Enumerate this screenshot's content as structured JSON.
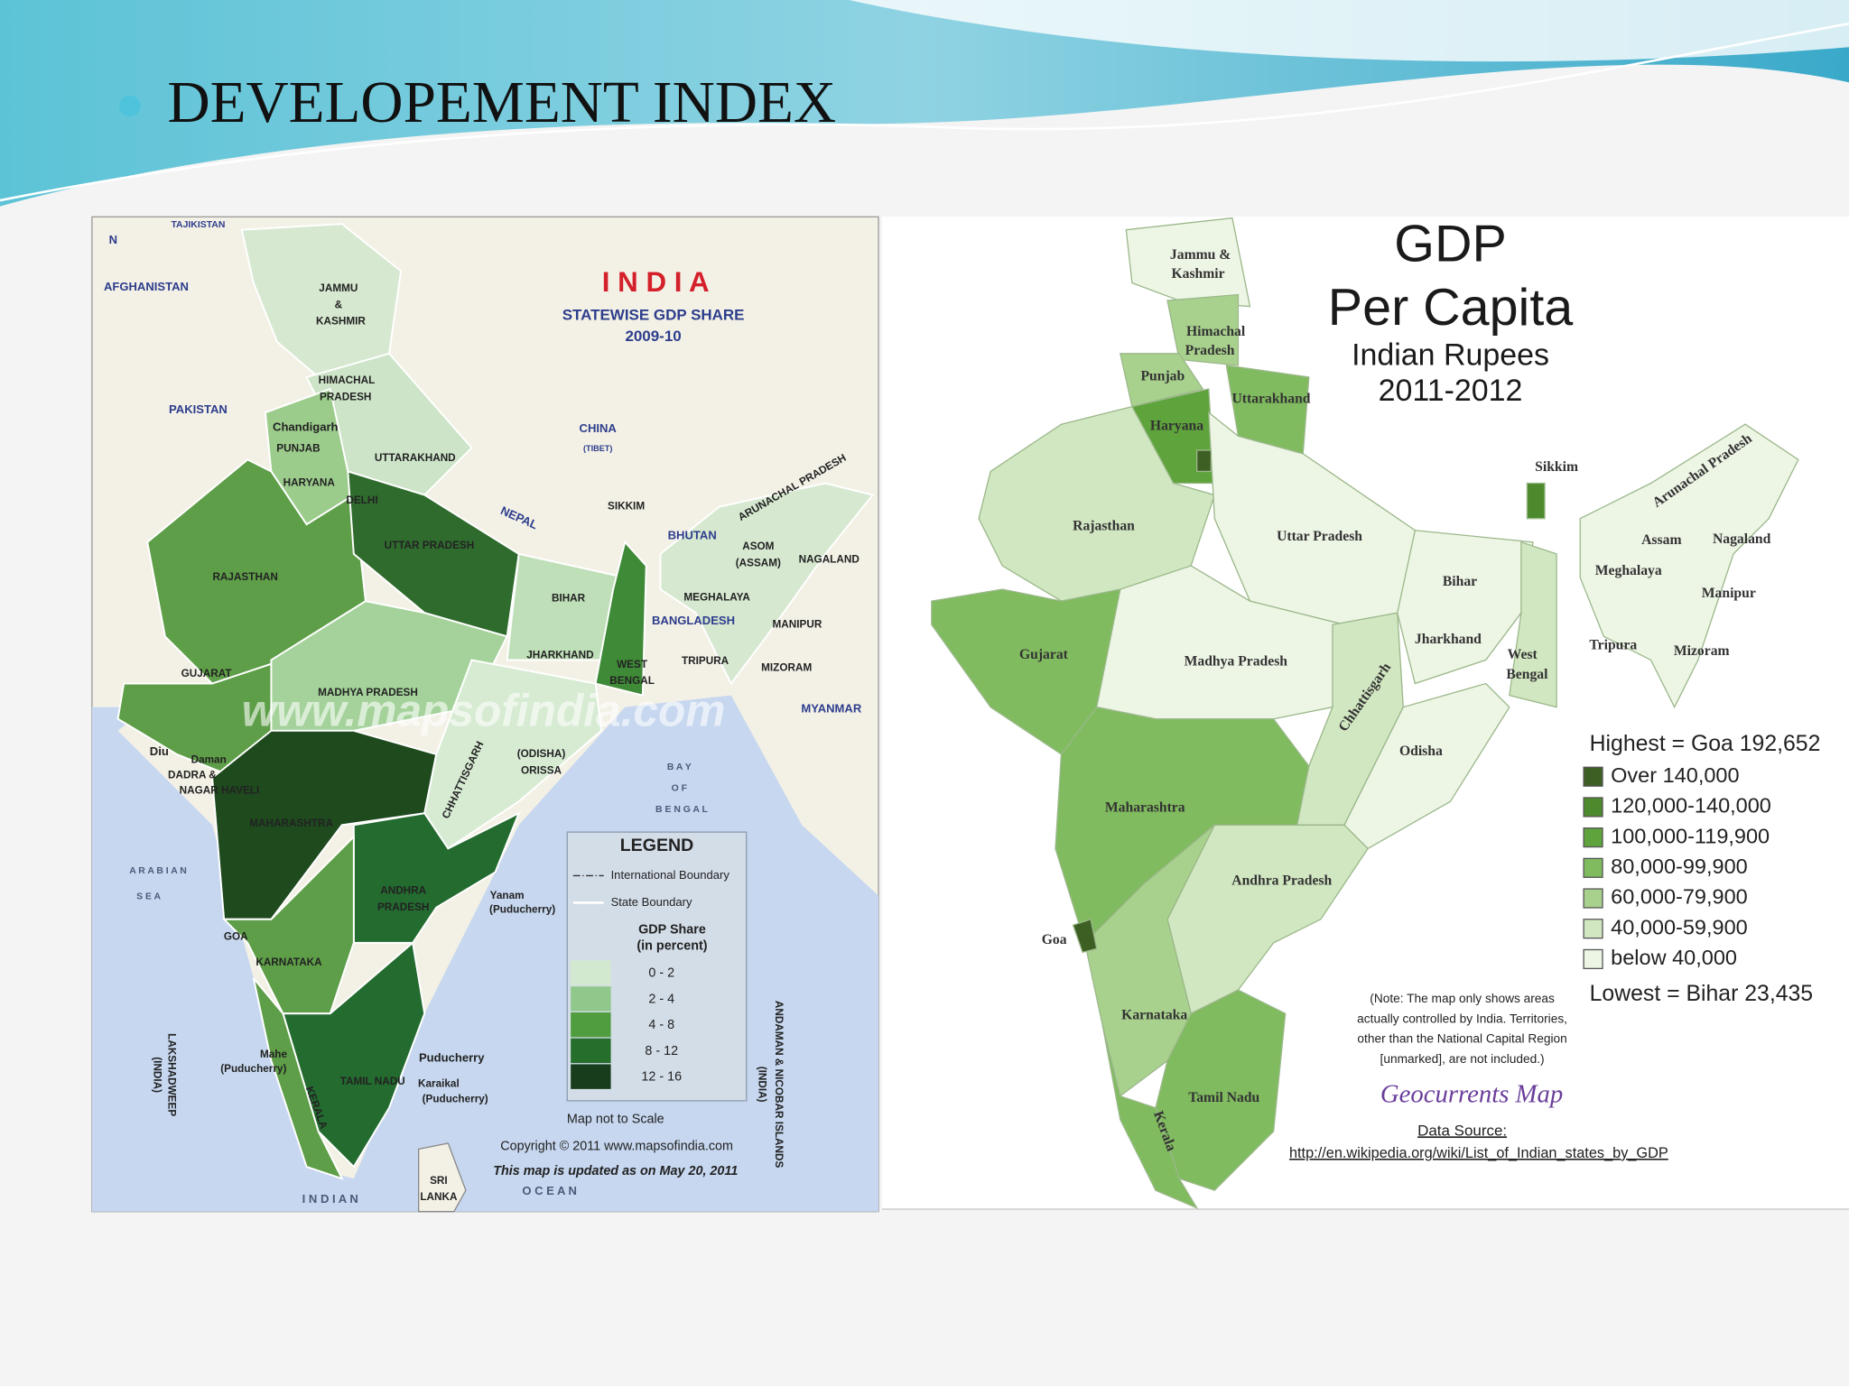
{
  "slide": {
    "title": "DEVELOPEMENT INDEX"
  },
  "left_map": {
    "title": "I N D I A",
    "subtitle": "STATEWISE GDP SHARE",
    "year": "2009-10",
    "labels": [
      "N",
      "TAJIKISTAN",
      "AFGHANISTAN",
      "PAKISTAN",
      "JAMMU",
      "&",
      "KASHMIR",
      "HIMACHAL",
      "PRADESH",
      "Chandigarh",
      "PUNJAB",
      "UTTARAKHAND",
      "HARYANA",
      "DELHI",
      "NEPAL",
      "CHINA",
      "(TIBET)",
      "SIKKIM",
      "BHUTAN",
      "ARUNACHAL PRADESH",
      "ASOM",
      "(ASSAM)",
      "NAGALAND",
      "MEGHALAYA",
      "BANGLADESH",
      "MANIPUR",
      "RAJASTHAN",
      "UTTAR PRADESH",
      "BIHAR",
      "JHARKHAND",
      "WEST",
      "BENGAL",
      "TRIPURA",
      "MIZORAM",
      "MYANMAR",
      "GUJARAT",
      "MADHYA PRADESH",
      "CHHATTISGARH",
      "(ODISHA)",
      "ORISSA",
      "B A Y",
      "O F",
      "B E N G A L",
      "Diu",
      "Daman",
      "DADRA &",
      "NAGAR HAVELI",
      "MAHARASHTRA",
      "A R A B I A N",
      "S E A",
      "GOA",
      "ANDHRA",
      "PRADESH",
      "Yanam",
      "(Puducherry)",
      "KARNATAKA",
      "LAKSHADWEEP",
      "(INDIA)",
      "Mahe",
      "(Puducherry)",
      "Puducherry",
      "TAMIL NADU",
      "Karaikal",
      "(Puducherry)",
      "KERALA",
      "SRI",
      "LANKA",
      "I  N  D  I  A  N",
      "O  C  E  A  N",
      "ANDAMAN & NICOBAR ISLANDS",
      "(INDIA)"
    ],
    "legend": {
      "title": "LEGEND",
      "lines": [
        "International Boundary",
        "State Boundary"
      ],
      "scale_title": [
        "GDP Share",
        "(in percent)"
      ],
      "classes": [
        {
          "label": "0 - 2",
          "color": "#d3e9cf"
        },
        {
          "label": "2 - 4",
          "color": "#8fc88a"
        },
        {
          "label": "4 - 8",
          "color": "#4f9d3f"
        },
        {
          "label": "8 - 12",
          "color": "#256e2c"
        },
        {
          "label": "12 - 16",
          "color": "#173d1c"
        }
      ]
    },
    "notes": [
      "Map not to Scale",
      "Copyright © 2011  www.mapsofindia.com",
      "This map is updated as on May 20, 2011"
    ],
    "watermark": "www.mapsofindia.com"
  },
  "right_map": {
    "title": [
      "GDP",
      "Per Capita"
    ],
    "subtitle": [
      "Indian Rupees",
      "2011-2012"
    ],
    "labels": [
      "Jammu &",
      "Kashmir",
      "Himachal",
      "Pradesh",
      "Punjab",
      "Uttarakhand",
      "Haryana",
      "Rajasthan",
      "Uttar Pradesh",
      "Sikkim",
      "Arunachal Pradesh",
      "Assam",
      "Nagaland",
      "Meghalaya",
      "Bihar",
      "Manipur",
      "Jharkhand",
      "West",
      "Bengal",
      "Tripura",
      "Mizoram",
      "Gujarat",
      "Madhya Pradesh",
      "Chhattisgarh",
      "Odisha",
      "Maharashtra",
      "Andhra Pradesh",
      "Goa",
      "Karnataka",
      "Tamil Nadu",
      "Kerala"
    ],
    "legend": {
      "highest": "Highest = Goa 192,652",
      "lowest": "Lowest = Bihar 23,435",
      "classes": [
        {
          "label": "Over 140,000",
          "color": "#3e5f24"
        },
        {
          "label": "120,000-140,000",
          "color": "#4d8a2d"
        },
        {
          "label": "100,000-119,900",
          "color": "#5ea33b"
        },
        {
          "label": "80,000-99,900",
          "color": "#80bb5f"
        },
        {
          "label": "60,000-79,900",
          "color": "#a9d18e"
        },
        {
          "label": "40,000-59,900",
          "color": "#d1e7c1"
        },
        {
          "label": "below 40,000",
          "color": "#edf5e5"
        }
      ]
    },
    "note": [
      "(Note: The map only shows areas",
      "actually controlled by India. Territories,",
      "other than the National Capital Region",
      "[unmarked], are not included.)"
    ],
    "credit": "Geocurrents Map",
    "source_title": "Data Source:",
    "source_url": "http://en.wikipedia.org/wiki/List_of_Indian_states_by_GDP"
  }
}
